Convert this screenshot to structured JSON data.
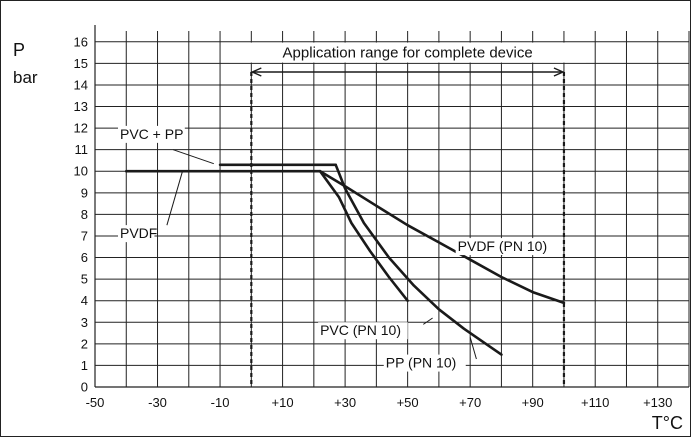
{
  "chart_data": {
    "type": "line",
    "title": "Application  range for complete device",
    "ylabel_line1": "P",
    "ylabel_line2": "bar",
    "xlabel": "T°C",
    "x_ticks": [
      {
        "value": -50,
        "label": "-50"
      },
      {
        "value": -30,
        "label": "-30"
      },
      {
        "value": -10,
        "label": "-10"
      },
      {
        "value": 10,
        "label": "+10"
      },
      {
        "value": 30,
        "label": "+30"
      },
      {
        "value": 50,
        "label": "+50"
      },
      {
        "value": 70,
        "label": "+70"
      },
      {
        "value": 90,
        "label": "+90"
      },
      {
        "value": 110,
        "label": "+110"
      },
      {
        "value": 130,
        "label": "+130"
      }
    ],
    "y_ticks": [
      {
        "value": 0,
        "label": "0"
      },
      {
        "value": 1,
        "label": "1"
      },
      {
        "value": 2,
        "label": "2"
      },
      {
        "value": 3,
        "label": "3"
      },
      {
        "value": 4,
        "label": "4"
      },
      {
        "value": 5,
        "label": "5"
      },
      {
        "value": 6,
        "label": "6"
      },
      {
        "value": 7,
        "label": "7"
      },
      {
        "value": 8,
        "label": "8"
      },
      {
        "value": 9,
        "label": "9"
      },
      {
        "value": 10,
        "label": "10"
      },
      {
        "value": 11,
        "label": "11"
      },
      {
        "value": 12,
        "label": "12"
      },
      {
        "value": 13,
        "label": "13"
      },
      {
        "value": 14,
        "label": "14"
      },
      {
        "value": 15,
        "label": "15"
      },
      {
        "value": 16,
        "label": "16"
      }
    ],
    "xlim": [
      -50,
      140
    ],
    "ylim": [
      0,
      16.5
    ],
    "grid": true,
    "application_range": {
      "x_start": 0,
      "x_end": 100,
      "arrow_y": 14.6
    },
    "series": [
      {
        "name": "PVC + PP",
        "points": [
          [
            -10,
            10.3
          ],
          [
            25,
            10.3
          ],
          [
            27,
            10.3
          ]
        ],
        "label_x": -42,
        "label_y": 11.5,
        "leader": [
          [
            -25,
            11.0
          ],
          [
            -12,
            10.35
          ]
        ]
      },
      {
        "name": "PVDF",
        "points": [
          [
            -40,
            10
          ],
          [
            22,
            10
          ]
        ],
        "label_x": -42,
        "label_y": 6.9,
        "leader": [
          [
            -27,
            7.5
          ],
          [
            -22,
            10.0
          ]
        ]
      },
      {
        "name": "PVDF (PN 10)",
        "points": [
          [
            22,
            10
          ],
          [
            30,
            9.3
          ],
          [
            40,
            8.4
          ],
          [
            50,
            7.5
          ],
          [
            60,
            6.7
          ],
          [
            70,
            5.9
          ],
          [
            80,
            5.1
          ],
          [
            90,
            4.4
          ],
          [
            100,
            3.9
          ]
        ],
        "label_x": 66,
        "label_y": 6.3,
        "leader": [
          [
            85,
            6.6
          ],
          [
            80,
            6.1
          ]
        ]
      },
      {
        "name": "PVC (PN 10)",
        "points": [
          [
            22,
            10
          ],
          [
            28,
            8.8
          ],
          [
            32,
            7.6
          ],
          [
            38,
            6.3
          ],
          [
            44,
            5.1
          ],
          [
            50,
            4.0
          ]
        ],
        "label_x": 22,
        "label_y": 2.4,
        "leader": [
          [
            55,
            2.9
          ],
          [
            58,
            3.2
          ]
        ]
      },
      {
        "name": "PP (PN 10)",
        "points": [
          [
            27,
            10.3
          ],
          [
            30,
            9.2
          ],
          [
            36,
            7.6
          ],
          [
            44,
            6.0
          ],
          [
            52,
            4.7
          ],
          [
            60,
            3.6
          ],
          [
            68,
            2.7
          ],
          [
            75,
            2.0
          ],
          [
            80,
            1.5
          ]
        ],
        "label_x": 43,
        "label_y": 0.9,
        "leader": [
          [
            72,
            1.3
          ],
          [
            70,
            2.3
          ]
        ]
      }
    ],
    "colors": {
      "line": "#1a1a1a",
      "grid": "#222222",
      "background": "#ffffff"
    }
  }
}
